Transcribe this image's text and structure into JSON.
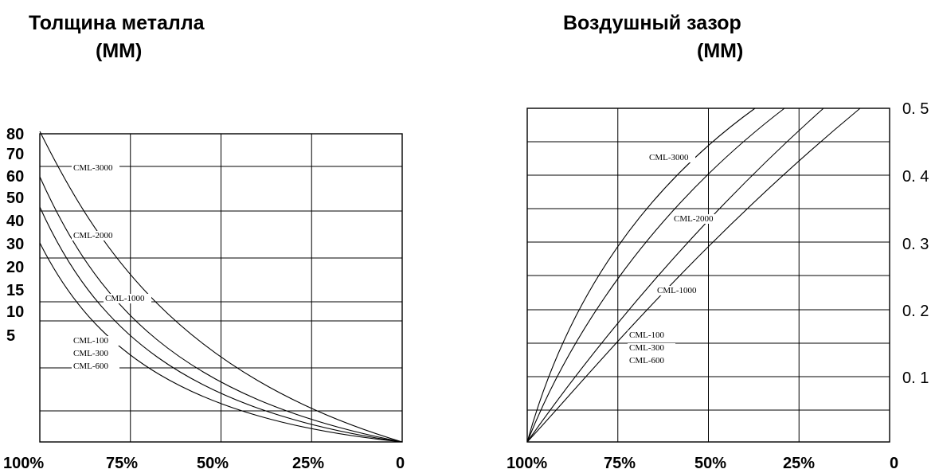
{
  "chart_data": [
    {
      "type": "line",
      "title_line1": "Толщина металла",
      "title_line2": "(ММ)",
      "x_ticks": [
        "100%",
        "75%",
        "50%",
        "25%",
        "0"
      ],
      "y_ticks": [
        "80",
        "70",
        "60",
        "50",
        "40",
        "30",
        "20",
        "15",
        "10",
        "5"
      ],
      "y_axis_side": "left",
      "x_direction": "decreasing",
      "grid": true,
      "series": [
        {
          "name": "CML-3000",
          "x": [
            100,
            75,
            50,
            25,
            0
          ],
          "y": [
            80,
            35,
            14,
            5,
            0
          ]
        },
        {
          "name": "CML-2000",
          "x": [
            100,
            75,
            50,
            25,
            0
          ],
          "y": [
            60,
            22,
            9,
            3,
            0
          ]
        },
        {
          "name": "CML-1000",
          "x": [
            100,
            75,
            50,
            25,
            0
          ],
          "y": [
            50,
            18,
            7,
            2.5,
            0
          ]
        },
        {
          "name": "CML-100 CML-300 CML-600",
          "x": [
            100,
            75,
            50,
            25,
            0
          ],
          "y": [
            40,
            14,
            5,
            1.5,
            0
          ]
        }
      ],
      "labels": [
        "CML-3000",
        "CML-2000",
        "CML-1000",
        "CML-100",
        "CML-300",
        "CML-600"
      ]
    },
    {
      "type": "line",
      "title_line1": "Воздушный зазор",
      "title_line2": "(ММ)",
      "x_ticks": [
        "100%",
        "75%",
        "50%",
        "25%",
        "0"
      ],
      "y_ticks": [
        "0. 5",
        "0. 4",
        "0. 3",
        "0. 2",
        "0. 1"
      ],
      "y_axis_side": "right",
      "x_direction": "decreasing",
      "ylim": [
        0,
        0.5
      ],
      "grid": true,
      "series": [
        {
          "name": "CML-3000",
          "x": [
            100,
            75,
            62.5,
            50,
            40
          ],
          "y": [
            0,
            0.26,
            0.36,
            0.44,
            0.5
          ]
        },
        {
          "name": "CML-2000",
          "x": [
            100,
            75,
            62.5,
            50,
            33
          ],
          "y": [
            0,
            0.23,
            0.32,
            0.39,
            0.5
          ]
        },
        {
          "name": "CML-1000",
          "x": [
            100,
            75,
            50,
            25,
            18
          ],
          "y": [
            0,
            0.19,
            0.31,
            0.44,
            0.5
          ]
        },
        {
          "name": "CML-100 CML-300 CML-600",
          "x": [
            100,
            75,
            50,
            25,
            7
          ],
          "y": [
            0,
            0.17,
            0.28,
            0.4,
            0.5
          ]
        }
      ],
      "labels": [
        "CML-3000",
        "CML-2000",
        "CML-1000",
        "CML-100",
        "CML-300",
        "CML-600"
      ]
    }
  ]
}
